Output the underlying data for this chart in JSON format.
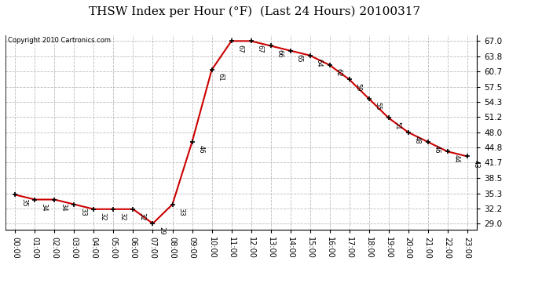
{
  "title": "THSW Index per Hour (°F)  (Last 24 Hours) 20100317",
  "copyright": "Copyright 2010 Cartronics.com",
  "hours": [
    "00:00",
    "01:00",
    "02:00",
    "03:00",
    "04:00",
    "05:00",
    "06:00",
    "07:00",
    "08:00",
    "09:00",
    "10:00",
    "11:00",
    "12:00",
    "13:00",
    "14:00",
    "15:00",
    "16:00",
    "17:00",
    "18:00",
    "19:00",
    "20:00",
    "21:00",
    "22:00",
    "23:00"
  ],
  "values": [
    35,
    34,
    34,
    33,
    32,
    32,
    32,
    29,
    33,
    46,
    61,
    67,
    67,
    66,
    65,
    64,
    62,
    59,
    55,
    51,
    48,
    46,
    44,
    43
  ],
  "line_color": "#cc0000",
  "marker_color": "#000000",
  "bg_color": "#ffffff",
  "grid_color": "#bbbbbb",
  "title_fontsize": 11,
  "label_fontsize": 7,
  "yticks": [
    29.0,
    32.2,
    35.3,
    38.5,
    41.7,
    44.8,
    48.0,
    51.2,
    54.3,
    57.5,
    60.7,
    63.8,
    67.0
  ],
  "ylim_min": 27.8,
  "ylim_max": 68.2
}
